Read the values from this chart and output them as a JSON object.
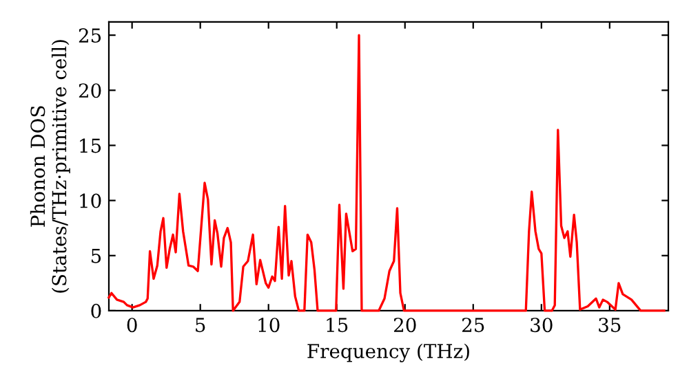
{
  "chart_data": {
    "type": "line",
    "xlabel": "Frequency (THz)",
    "ylabel": "Phonon DOS\n(States/THz·primitive cell)",
    "xlim": [
      -1.7,
      39.3
    ],
    "ylim": [
      0,
      26.2
    ],
    "xticks": [
      0,
      5,
      10,
      15,
      20,
      25,
      30,
      35
    ],
    "yticks": [
      0,
      5,
      10,
      15,
      20,
      25
    ],
    "grid": false,
    "legend": false,
    "series": [
      {
        "color": "#ff0000",
        "x": [
          -1.7,
          -1.51,
          -1.11,
          -0.61,
          -0.37,
          0.07,
          0.57,
          1.01,
          1.14,
          1.31,
          1.58,
          1.85,
          2.09,
          2.29,
          2.53,
          2.76,
          3.0,
          3.2,
          3.47,
          3.74,
          4.14,
          4.48,
          4.82,
          5.32,
          5.56,
          5.82,
          6.06,
          6.26,
          6.53,
          6.73,
          7.0,
          7.24,
          7.4,
          7.88,
          8.15,
          8.49,
          8.86,
          9.12,
          9.39,
          9.8,
          10.0,
          10.27,
          10.47,
          10.74,
          10.98,
          11.21,
          11.48,
          11.68,
          11.95,
          12.22,
          12.63,
          12.86,
          13.13,
          13.37,
          13.6,
          14.95,
          15.19,
          15.49,
          15.69,
          16.16,
          16.4,
          16.63,
          16.83,
          18.08,
          18.5,
          18.86,
          19.19,
          19.43,
          19.66,
          19.93,
          28.86,
          29.09,
          29.29,
          29.56,
          29.8,
          30.0,
          30.24,
          30.77,
          30.98,
          31.21,
          31.45,
          31.68,
          31.92,
          32.12,
          32.39,
          32.59,
          32.83,
          33.4,
          34.0,
          34.24,
          34.51,
          34.81,
          35.42,
          35.66,
          35.96,
          36.6,
          37.27,
          39.0
        ],
        "values": [
          1.2,
          1.6,
          1.0,
          0.8,
          0.5,
          0.3,
          0.5,
          0.8,
          1.1,
          5.4,
          2.9,
          4.1,
          7.2,
          8.4,
          3.9,
          5.6,
          6.9,
          5.3,
          10.6,
          7.2,
          4.1,
          4.0,
          3.6,
          11.6,
          10.1,
          4.2,
          8.2,
          7.0,
          4.0,
          6.6,
          7.5,
          6.2,
          0,
          0.8,
          4.0,
          4.5,
          6.9,
          2.4,
          4.6,
          2.5,
          2.1,
          3.1,
          2.7,
          7.6,
          2.9,
          9.5,
          3.2,
          4.5,
          1.3,
          0,
          0,
          6.9,
          6.2,
          3.7,
          0,
          0,
          9.6,
          2.0,
          8.8,
          5.4,
          5.6,
          25.0,
          0,
          0,
          1.1,
          3.6,
          4.5,
          9.3,
          1.6,
          0,
          0,
          7.2,
          10.8,
          7.2,
          5.6,
          5.2,
          0,
          0,
          0.5,
          16.4,
          7.7,
          6.6,
          7.2,
          4.9,
          8.7,
          6.2,
          0.1,
          0.4,
          1.1,
          0.3,
          1.0,
          0.8,
          0.1,
          2.5,
          1.5,
          1.0,
          0,
          0
        ]
      }
    ]
  }
}
